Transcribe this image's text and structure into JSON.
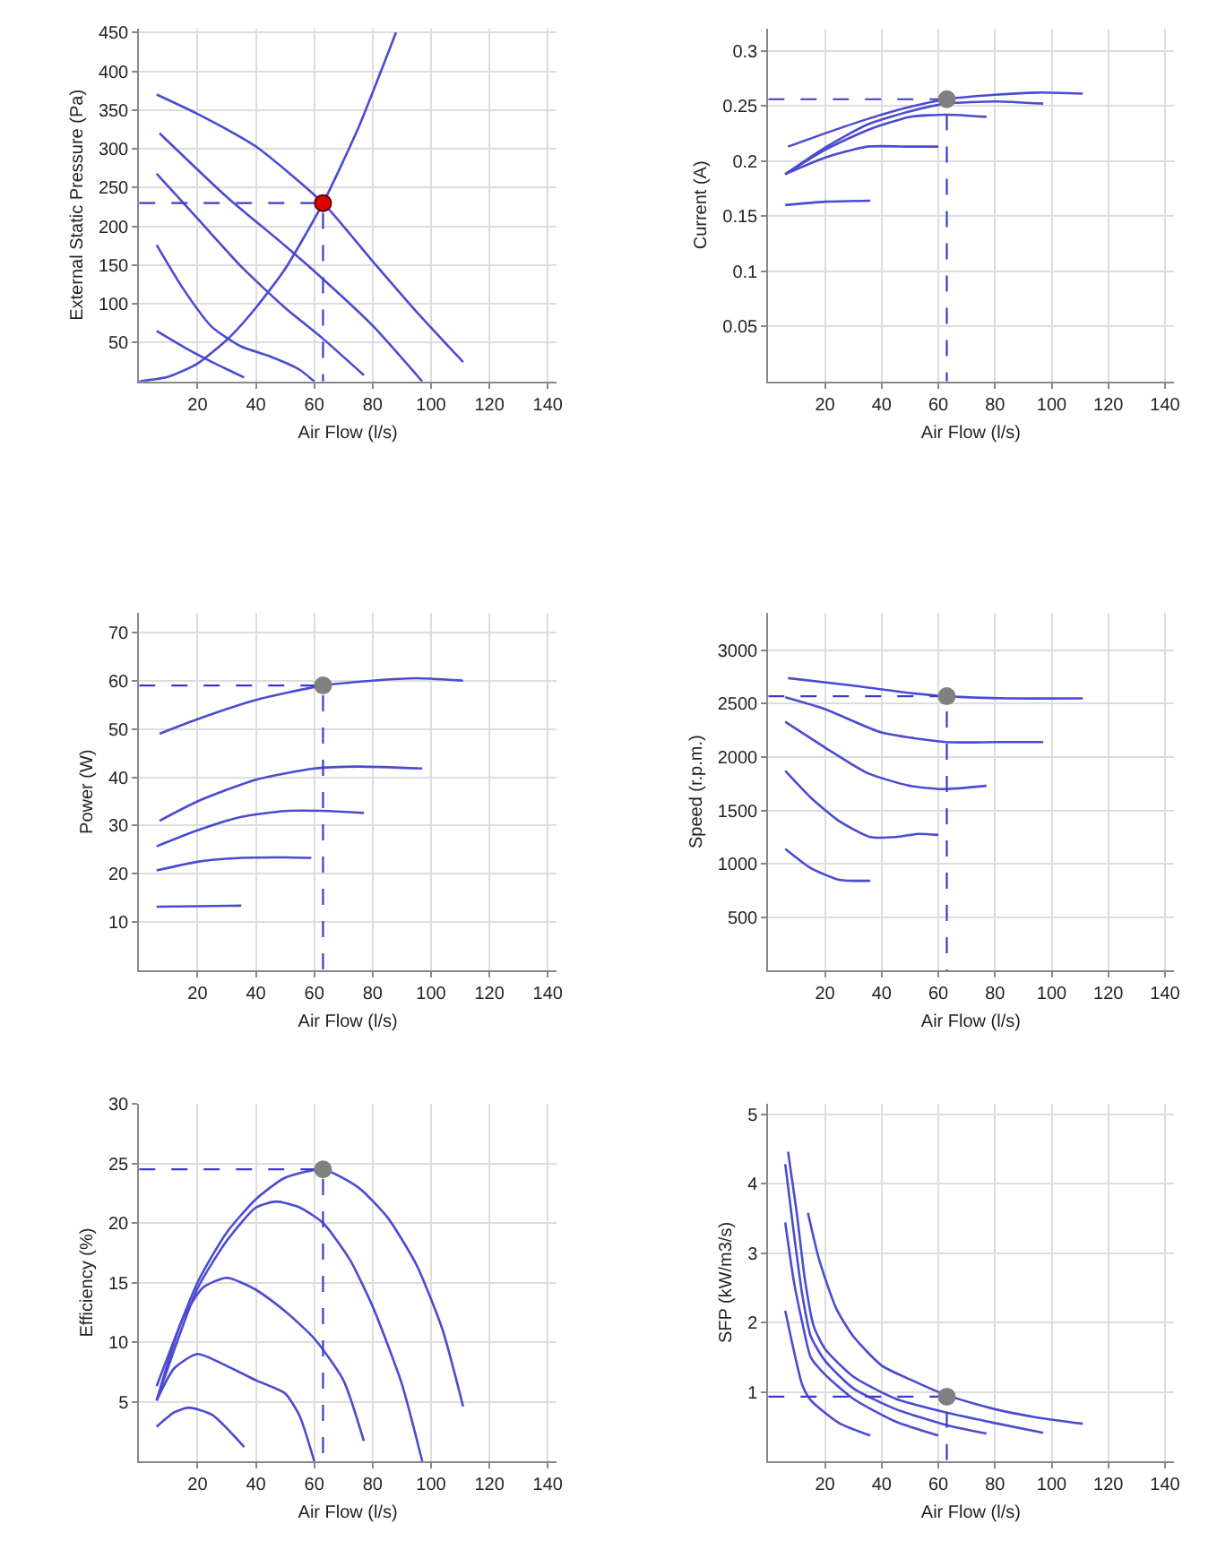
{
  "chart_data": [
    {
      "type": "line",
      "xlabel": "Air Flow (l/s)",
      "ylabel": "External Static Pressure (Pa)",
      "xlim": [
        0,
        143
      ],
      "ylim": [
        0,
        455
      ],
      "xticks": [
        20,
        40,
        60,
        80,
        100,
        120,
        140
      ],
      "yticks": [
        50,
        100,
        150,
        200,
        250,
        300,
        350,
        400,
        450
      ],
      "grid": true,
      "series": [
        {
          "type": "line",
          "color": "#4b4bd2",
          "x": [
            6,
            20,
            40,
            63,
            80,
            95,
            111
          ],
          "values": [
            370,
            345,
            303,
            230,
            155,
            90,
            25
          ]
        },
        {
          "type": "line",
          "color": "#4b4bd2",
          "x": [
            7,
            30,
            50,
            63,
            80,
            97
          ],
          "values": [
            320,
            238,
            175,
            132,
            72,
            0
          ]
        },
        {
          "type": "line",
          "color": "#4b4bd2",
          "x": [
            6,
            20,
            35,
            50,
            63,
            77
          ],
          "values": [
            268,
            210,
            148,
            95,
            55,
            8
          ]
        },
        {
          "type": "line",
          "color": "#4b4bd2",
          "x": [
            6,
            15,
            25,
            35,
            45,
            55,
            60
          ],
          "values": [
            176,
            120,
            70,
            45,
            32,
            15,
            0
          ]
        },
        {
          "type": "line",
          "color": "#4b4bd2",
          "x": [
            6,
            15,
            25,
            36
          ],
          "values": [
            65,
            45,
            25,
            5
          ]
        },
        {
          "type": "line",
          "color": "#4b4bd2",
          "x": [
            0,
            10,
            20,
            31,
            40,
            50,
            63,
            75,
            88
          ],
          "values": [
            0,
            6,
            23,
            57,
            95,
            145,
            230,
            326,
            450
          ]
        },
        {
          "type": "line",
          "color": "#3c3cc8",
          "line_style": "dashed",
          "x": [
            0,
            63,
            63
          ],
          "values": [
            230,
            230,
            0
          ]
        },
        {
          "type": "scatter",
          "color": "#e00000",
          "marker": "circle",
          "x": [
            63
          ],
          "values": [
            230
          ]
        }
      ]
    },
    {
      "type": "line",
      "xlabel": "Air Flow (l/s)",
      "ylabel": "Current (A)",
      "xlim": [
        0,
        143
      ],
      "ylim": [
        0,
        0.32
      ],
      "xticks": [
        20,
        40,
        60,
        80,
        100,
        120,
        140
      ],
      "yticks": [
        0.05,
        0.1,
        0.15,
        0.2,
        0.25,
        0.3
      ],
      "grid": true,
      "series": [
        {
          "type": "line",
          "color": "#4b4bd2",
          "x": [
            7,
            20,
            35,
            50,
            63,
            80,
            95,
            111
          ],
          "values": [
            0.213,
            0.225,
            0.238,
            0.249,
            0.256,
            0.26,
            0.262,
            0.261
          ]
        },
        {
          "type": "line",
          "color": "#4b4bd2",
          "x": [
            6,
            20,
            35,
            50,
            63,
            80,
            97
          ],
          "values": [
            0.188,
            0.212,
            0.233,
            0.245,
            0.252,
            0.254,
            0.252
          ]
        },
        {
          "type": "line",
          "color": "#4b4bd2",
          "x": [
            6,
            20,
            35,
            50,
            63,
            77
          ],
          "values": [
            0.188,
            0.21,
            0.228,
            0.24,
            0.242,
            0.24
          ]
        },
        {
          "type": "line",
          "color": "#4b4bd2",
          "x": [
            6,
            20,
            35,
            50,
            60
          ],
          "values": [
            0.188,
            0.203,
            0.213,
            0.213,
            0.213
          ]
        },
        {
          "type": "line",
          "color": "#4b4bd2",
          "x": [
            6,
            20,
            36
          ],
          "values": [
            0.16,
            0.163,
            0.164
          ]
        },
        {
          "type": "line",
          "color": "#3c3cc8",
          "line_style": "dashed",
          "x": [
            0,
            63,
            63
          ],
          "values": [
            0.256,
            0.256,
            0
          ]
        },
        {
          "type": "scatter",
          "color": "#808080",
          "marker": "circle",
          "x": [
            63
          ],
          "values": [
            0.256
          ]
        }
      ]
    },
    {
      "type": "line",
      "xlabel": "Air Flow (l/s)",
      "ylabel": "Power (W)",
      "xlim": [
        0,
        143
      ],
      "ylim": [
        0,
        74
      ],
      "xticks": [
        20,
        40,
        60,
        80,
        100,
        120,
        140
      ],
      "yticks": [
        10,
        20,
        30,
        40,
        50,
        60,
        70
      ],
      "grid": true,
      "series": [
        {
          "type": "line",
          "color": "#4b4bd2",
          "x": [
            7,
            20,
            40,
            63,
            80,
            95,
            111
          ],
          "values": [
            49,
            52,
            56,
            59,
            60,
            60.5,
            60
          ]
        },
        {
          "type": "line",
          "color": "#4b4bd2",
          "x": [
            7,
            20,
            40,
            60,
            75,
            97
          ],
          "values": [
            31,
            35,
            39.5,
            41.8,
            42.2,
            41.8
          ]
        },
        {
          "type": "line",
          "color": "#4b4bd2",
          "x": [
            6,
            20,
            35,
            50,
            65,
            77
          ],
          "values": [
            25.7,
            29,
            31.8,
            33,
            33,
            32.6
          ]
        },
        {
          "type": "line",
          "color": "#4b4bd2",
          "x": [
            6,
            20,
            35,
            50,
            59
          ],
          "values": [
            20.7,
            22.5,
            23.3,
            23.4,
            23.3
          ]
        },
        {
          "type": "line",
          "color": "#4b4bd2",
          "x": [
            6,
            20,
            35
          ],
          "values": [
            13.2,
            13.3,
            13.4
          ]
        },
        {
          "type": "line",
          "color": "#3c3cc8",
          "line_style": "dashed",
          "x": [
            0,
            63,
            63
          ],
          "values": [
            59,
            59,
            0
          ]
        },
        {
          "type": "scatter",
          "color": "#808080",
          "marker": "circle",
          "x": [
            63
          ],
          "values": [
            59
          ]
        }
      ]
    },
    {
      "type": "line",
      "xlabel": "Air Flow (l/s)",
      "ylabel": "Speed (r.p.m.)",
      "xlim": [
        0,
        143
      ],
      "ylim": [
        0,
        3350
      ],
      "xticks": [
        20,
        40,
        60,
        80,
        100,
        120,
        140
      ],
      "yticks": [
        500,
        1000,
        1500,
        2000,
        2500,
        3000
      ],
      "grid": true,
      "series": [
        {
          "color": "#4b4bd2",
          "x": [
            7,
            30,
            50,
            63,
            85,
            111
          ],
          "values": [
            2740,
            2670,
            2600,
            2570,
            2550,
            2550
          ]
        },
        {
          "color": "#4b4bd2",
          "x": [
            6,
            20,
            40,
            63,
            80,
            97
          ],
          "values": [
            2560,
            2450,
            2230,
            2140,
            2140,
            2140
          ]
        },
        {
          "color": "#4b4bd2",
          "x": [
            6,
            20,
            35,
            50,
            62,
            77
          ],
          "values": [
            2330,
            2090,
            1850,
            1730,
            1700,
            1730
          ]
        },
        {
          "color": "#4b4bd2",
          "x": [
            6,
            15,
            25,
            36,
            45,
            53,
            60
          ],
          "values": [
            1870,
            1620,
            1400,
            1250,
            1250,
            1280,
            1270
          ]
        },
        {
          "color": "#4b4bd2",
          "x": [
            6,
            15,
            25,
            36
          ],
          "values": [
            1140,
            960,
            850,
            840
          ]
        },
        {
          "color": "#3c3cc8",
          "line_style": "dashed",
          "x": [
            0,
            63,
            63
          ],
          "values": [
            2570,
            2570,
            0
          ]
        },
        {
          "type": "scatter",
          "color": "#808080",
          "marker": "circle",
          "x": [
            63
          ],
          "values": [
            2570
          ]
        }
      ]
    },
    {
      "type": "line",
      "xlabel": "Air Flow (l/s)",
      "ylabel": "Efficiency (%)",
      "xlim": [
        0,
        143
      ],
      "ylim": [
        0,
        30
      ],
      "xticks": [
        20,
        40,
        60,
        80,
        100,
        120,
        140
      ],
      "yticks": [
        5,
        10,
        15,
        20,
        25,
        30
      ],
      "grid": true,
      "series": [
        {
          "type": "line",
          "color": "#4b4bd2",
          "x": [
            6,
            20,
            30,
            40,
            50,
            63,
            75,
            85,
            95,
            104,
            111
          ],
          "values": [
            6.3,
            15,
            19.2,
            22,
            23.8,
            24.5,
            23,
            20.5,
            16.5,
            11,
            4.6
          ]
        },
        {
          "type": "line",
          "color": "#4b4bd2",
          "x": [
            6,
            20,
            30,
            40,
            47,
            55,
            63,
            72,
            80,
            90,
            97
          ],
          "values": [
            5.1,
            14.5,
            18.5,
            21.3,
            21.8,
            21.3,
            20,
            17,
            13,
            6.5,
            0
          ]
        },
        {
          "type": "line",
          "color": "#4b4bd2",
          "x": [
            6,
            15,
            22,
            30,
            40,
            50,
            60,
            70,
            77
          ],
          "values": [
            5.1,
            12,
            14.6,
            15.4,
            14.4,
            12.6,
            10.3,
            6.8,
            1.7
          ]
        },
        {
          "type": "line",
          "color": "#4b4bd2",
          "x": [
            6,
            12,
            20,
            30,
            40,
            50,
            55,
            60
          ],
          "values": [
            5.1,
            7.8,
            9,
            8,
            6.8,
            5.7,
            3.8,
            0
          ]
        },
        {
          "type": "line",
          "color": "#4b4bd2",
          "x": [
            6,
            12,
            17,
            25,
            36
          ],
          "values": [
            2.9,
            4.1,
            4.5,
            3.9,
            1.2
          ]
        },
        {
          "type": "line",
          "color": "#3c3cc8",
          "line_style": "dashed",
          "x": [
            0,
            63,
            63
          ],
          "values": [
            24.5,
            24.5,
            0
          ]
        },
        {
          "type": "scatter",
          "color": "#808080",
          "marker": "circle",
          "x": [
            63
          ],
          "values": [
            24.5
          ]
        }
      ]
    },
    {
      "type": "line",
      "xlabel": "Air Flow (l/s)",
      "ylabel": "SFP (kW/m3/s)",
      "xlim": [
        0,
        143
      ],
      "ylim": [
        0,
        5.15
      ],
      "xticks": [
        20,
        40,
        60,
        80,
        100,
        120,
        140
      ],
      "yticks": [
        1,
        2,
        3,
        4,
        5
      ],
      "grid": true,
      "series": [
        {
          "type": "line",
          "color": "#4b4bd2",
          "x": [
            14,
            18,
            24,
            30,
            40,
            50,
            63,
            80,
            95,
            111
          ],
          "values": [
            3.58,
            2.9,
            2.2,
            1.8,
            1.38,
            1.18,
            0.95,
            0.75,
            0.63,
            0.54
          ]
        },
        {
          "type": "line",
          "color": "#4b4bd2",
          "x": [
            7,
            10,
            13,
            16,
            20,
            30,
            45,
            63,
            80,
            97
          ],
          "values": [
            4.46,
            3.6,
            2.6,
            1.95,
            1.62,
            1.22,
            0.9,
            0.7,
            0.55,
            0.41
          ]
        },
        {
          "type": "line",
          "color": "#4b4bd2",
          "x": [
            6,
            9,
            12,
            15,
            20,
            30,
            45,
            63,
            77
          ],
          "values": [
            4.28,
            3.3,
            2.4,
            1.8,
            1.45,
            1.05,
            0.75,
            0.52,
            0.4
          ]
        },
        {
          "type": "line",
          "color": "#4b4bd2",
          "x": [
            6,
            9,
            12,
            15,
            20,
            30,
            45,
            60
          ],
          "values": [
            3.44,
            2.6,
            2.0,
            1.5,
            1.25,
            0.9,
            0.57,
            0.37
          ]
        },
        {
          "type": "line",
          "color": "#4b4bd2",
          "x": [
            6,
            9,
            12,
            15,
            25,
            36
          ],
          "values": [
            2.17,
            1.6,
            1.1,
            0.88,
            0.55,
            0.37
          ]
        },
        {
          "type": "line",
          "color": "#3c3cc8",
          "line_style": "dashed",
          "x": [
            0,
            63,
            63
          ],
          "values": [
            0.93,
            0.93,
            0
          ]
        },
        {
          "type": "scatter",
          "color": "#808080",
          "marker": "circle",
          "x": [
            63
          ],
          "values": [
            0.93
          ]
        }
      ]
    }
  ]
}
